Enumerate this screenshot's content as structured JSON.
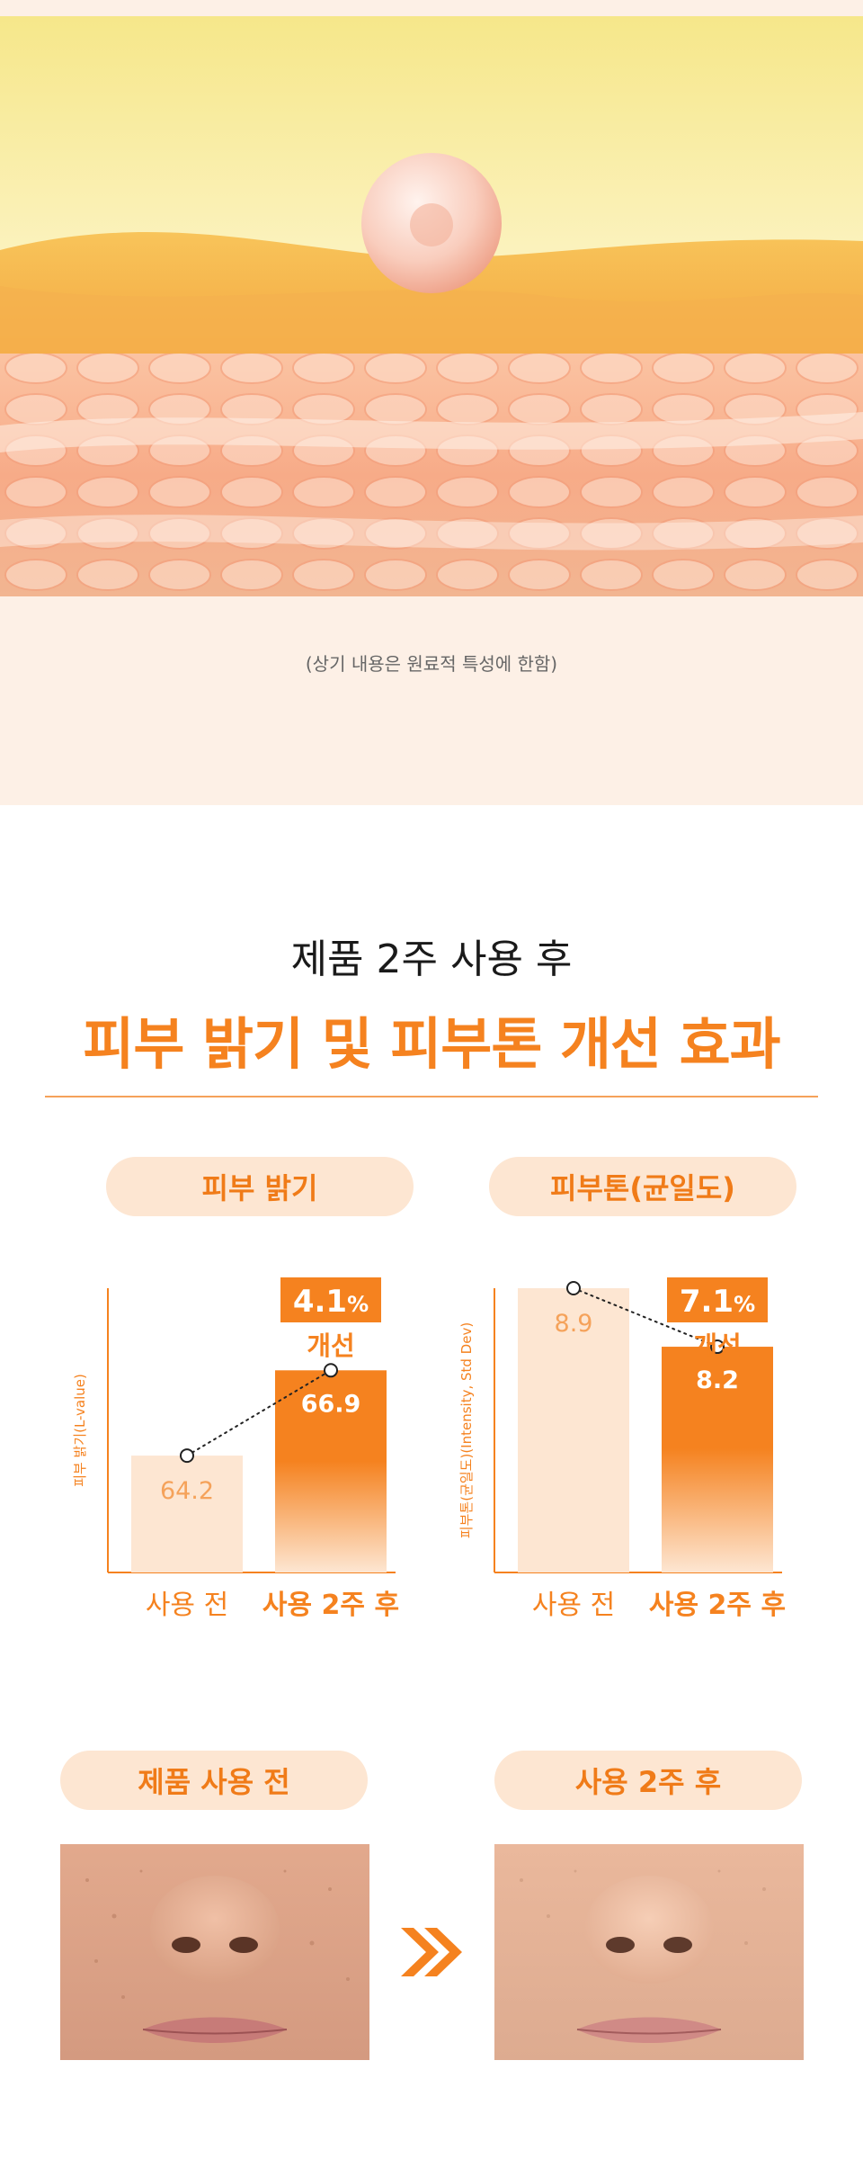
{
  "hero": {
    "disclaimer": "(상기 내용은 원료적 특성에 한함)"
  },
  "section": {
    "subtitle": "제품 2주 사용 후",
    "title": "피부 밝기 및 피부톤 개선 효과"
  },
  "colors": {
    "accent": "#f5821f",
    "pill_bg": "#fde6d2",
    "bar_before": "#fde6d2",
    "bar_after_top": "#f5821f"
  },
  "chart_data": [
    {
      "type": "bar",
      "title": "피부 밝기",
      "ylabel": "피부 밝기(L-value)",
      "categories": [
        "사용 전",
        "사용 2주 후"
      ],
      "values": [
        64.2,
        66.9
      ],
      "value_labels": [
        "64.2",
        "66.9"
      ],
      "improvement": {
        "value": "4.1",
        "unit": "%",
        "label": "개선"
      },
      "grid": false
    },
    {
      "type": "bar",
      "title": "피부톤(균일도)",
      "ylabel": "피부톤(균일도)(Intensity, Std Dev)",
      "categories": [
        "사용 전",
        "사용 2주 후"
      ],
      "values": [
        8.9,
        8.2
      ],
      "value_labels": [
        "8.9",
        "8.2"
      ],
      "improvement": {
        "value": "7.1",
        "unit": "%",
        "label": "개선"
      },
      "grid": false
    }
  ],
  "comparison": {
    "before_label": "제품 사용 전",
    "after_label": "사용 2주 후",
    "arrow_icon": "double-chevron-right-icon"
  }
}
